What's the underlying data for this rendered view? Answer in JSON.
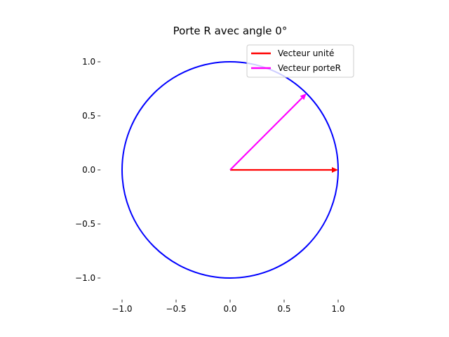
{
  "chart_data": {
    "type": "line",
    "title": "Porte R avec angle 0°",
    "xlim": [
      -1.2,
      1.2
    ],
    "ylim": [
      -1.2,
      1.2
    ],
    "x_ticks": [
      -1.0,
      -0.5,
      0.0,
      0.5,
      1.0
    ],
    "y_ticks": [
      -1.0,
      -0.5,
      0.0,
      0.5,
      1.0
    ],
    "x_tick_labels": [
      "−1.0",
      "−0.5",
      "0.0",
      "0.5",
      "1.0"
    ],
    "y_tick_labels": [
      "−1.0",
      "−0.5",
      "0.0",
      "0.5",
      "1.0"
    ],
    "grid": false,
    "legend_position": "top-right",
    "circle": {
      "center": [
        0,
        0
      ],
      "radius": 1,
      "color": "#0000ff"
    },
    "series": [
      {
        "name": "Vecteur unité",
        "color": "#ff0000",
        "start": [
          0,
          0
        ],
        "end": [
          1.0,
          0.0
        ]
      },
      {
        "name": "Vecteur porteR",
        "color": "#ff00ff",
        "start": [
          0,
          0
        ],
        "end": [
          0.707,
          0.707
        ]
      }
    ]
  }
}
